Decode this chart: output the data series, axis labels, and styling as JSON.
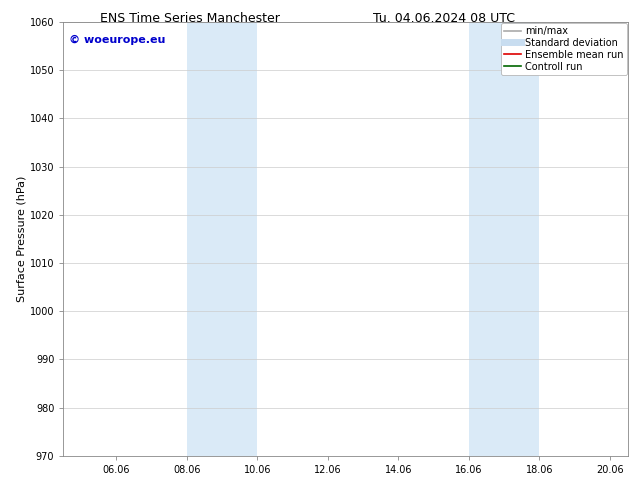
{
  "title_left": "ENS Time Series Manchester",
  "title_right": "Tu. 04.06.2024 08 UTC",
  "ylabel": "Surface Pressure (hPa)",
  "ylim": [
    970,
    1060
  ],
  "yticks": [
    970,
    980,
    990,
    1000,
    1010,
    1020,
    1030,
    1040,
    1050,
    1060
  ],
  "xlim_start": 4.5,
  "xlim_end": 20.5,
  "xtick_labels": [
    "06.06",
    "08.06",
    "10.06",
    "12.06",
    "14.06",
    "16.06",
    "18.06",
    "20.06"
  ],
  "xtick_positions": [
    6.0,
    8.0,
    10.0,
    12.0,
    14.0,
    16.0,
    18.0,
    20.0
  ],
  "shaded_bands": [
    {
      "x_start": 8.0,
      "x_end": 10.0
    },
    {
      "x_start": 16.0,
      "x_end": 18.0
    }
  ],
  "shaded_color": "#daeaf7",
  "watermark_text": "© woeurope.eu",
  "watermark_color": "#0000cc",
  "legend_items": [
    {
      "label": "min/max",
      "color": "#aaaaaa",
      "lw": 1.2,
      "style": "line"
    },
    {
      "label": "Standard deviation",
      "color": "#c8ddf0",
      "lw": 5,
      "style": "line"
    },
    {
      "label": "Ensemble mean run",
      "color": "#dd0000",
      "lw": 1.2,
      "style": "line"
    },
    {
      "label": "Controll run",
      "color": "#006600",
      "lw": 1.2,
      "style": "line"
    }
  ],
  "bg_color": "#ffffff",
  "grid_color": "#cccccc",
  "title_fontsize": 9,
  "ylabel_fontsize": 8,
  "tick_fontsize": 7,
  "watermark_fontsize": 8,
  "legend_fontsize": 7
}
